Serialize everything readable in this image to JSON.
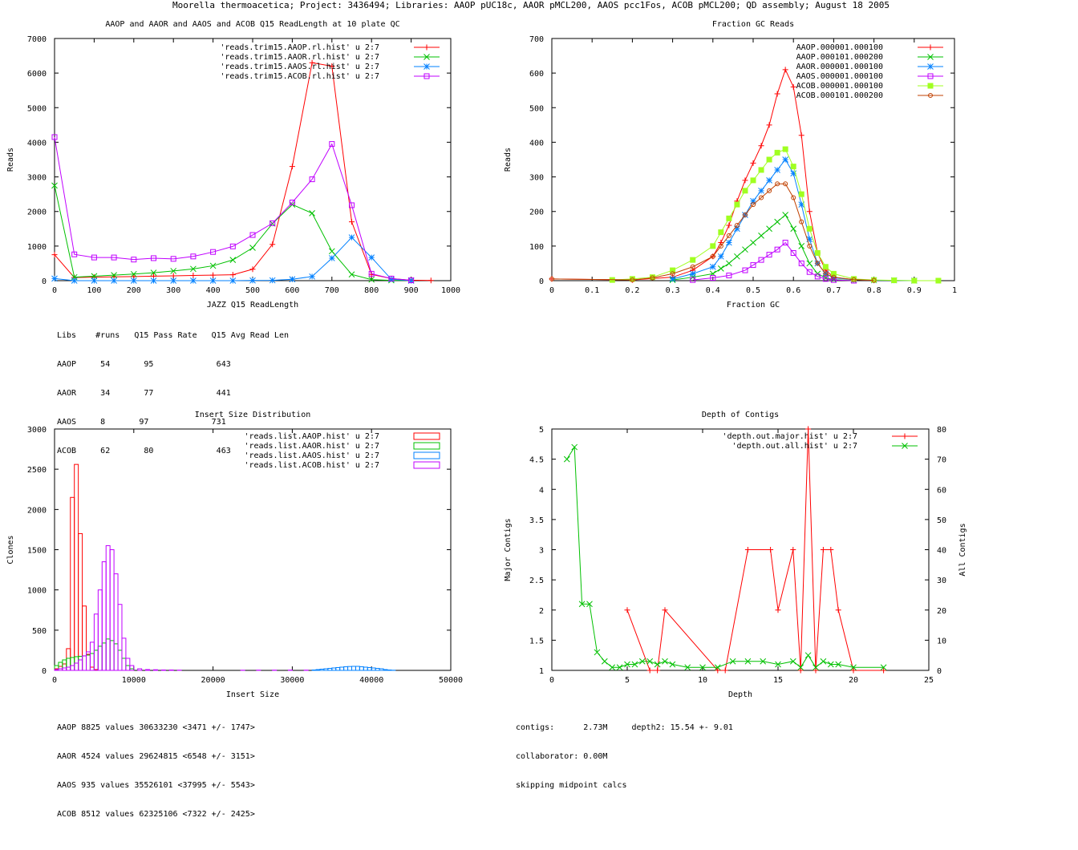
{
  "page": {
    "title": "Moorella thermoacetica; Project: 3436494; Libraries: AAOP pUC18c, AAOR pMCL200, AAOS pcc1Fos, ACOB pMCL200; QD assembly; August 18 2005"
  },
  "colors": {
    "red": "#ff0000",
    "green": "#00c000",
    "blue": "#0080ff",
    "magenta": "#c000ff",
    "lime": "#a0ff20",
    "brown": "#c04000"
  },
  "chart_data": [
    {
      "type": "line",
      "title": "AAOP and AAOR and AAOS and ACOB Q15 ReadLength at 10 plate QC",
      "xlabel": "JAZZ Q15 ReadLength",
      "ylabel": "Reads",
      "xlim": [
        0,
        1000
      ],
      "ylim": [
        0,
        7000
      ],
      "xticks": [
        0,
        100,
        200,
        300,
        400,
        500,
        600,
        700,
        800,
        900,
        1000
      ],
      "yticks": [
        0,
        1000,
        2000,
        3000,
        4000,
        5000,
        6000,
        7000
      ],
      "legend_position": "top-right",
      "series": [
        {
          "name": "'reads.trim15.AAOP.rl.hist' u 2:7",
          "color": "#ff0000",
          "marker": "plus",
          "x": [
            0,
            50,
            100,
            150,
            200,
            250,
            300,
            350,
            400,
            450,
            500,
            550,
            600,
            650,
            700,
            750,
            800,
            850,
            900,
            950
          ],
          "y": [
            750,
            90,
            100,
            110,
            120,
            130,
            140,
            150,
            160,
            170,
            330,
            1050,
            3300,
            6300,
            6200,
            1700,
            180,
            60,
            15,
            5
          ]
        },
        {
          "name": "'reads.trim15.AAOR.rl.hist' u 2:7",
          "color": "#00c000",
          "marker": "cross",
          "x": [
            0,
            50,
            100,
            150,
            200,
            250,
            300,
            350,
            400,
            450,
            500,
            550,
            600,
            650,
            700,
            750,
            800,
            850,
            900
          ],
          "y": [
            2750,
            100,
            130,
            160,
            190,
            230,
            280,
            340,
            430,
            600,
            950,
            1650,
            2200,
            1950,
            850,
            180,
            30,
            10,
            5
          ]
        },
        {
          "name": "'reads.trim15.AAOS.rl.hist' u 2:7",
          "color": "#0080ff",
          "marker": "star",
          "x": [
            0,
            50,
            100,
            150,
            200,
            250,
            300,
            350,
            400,
            450,
            500,
            550,
            600,
            650,
            700,
            750,
            800,
            850,
            900
          ],
          "y": [
            60,
            0,
            0,
            0,
            0,
            0,
            0,
            0,
            0,
            0,
            5,
            10,
            40,
            120,
            650,
            1250,
            670,
            40,
            0
          ]
        },
        {
          "name": "'reads.trim15.ACOB.rl.hist' u 2:7",
          "color": "#c000ff",
          "marker": "box",
          "x": [
            0,
            50,
            100,
            150,
            200,
            250,
            300,
            350,
            400,
            450,
            500,
            550,
            600,
            650,
            700,
            750,
            800,
            850,
            900
          ],
          "y": [
            4150,
            760,
            670,
            670,
            610,
            650,
            630,
            700,
            830,
            990,
            1320,
            1660,
            2260,
            2930,
            3950,
            2180,
            200,
            60,
            10
          ]
        }
      ]
    },
    {
      "type": "line",
      "title": "Fraction GC Reads",
      "xlabel": "Fraction GC",
      "ylabel": "Reads",
      "xlim": [
        0,
        1
      ],
      "ylim": [
        0,
        700
      ],
      "xticks": [
        0,
        0.1,
        0.2,
        0.3,
        0.4,
        0.5,
        0.6,
        0.7,
        0.8,
        0.9,
        1
      ],
      "yticks": [
        0,
        100,
        200,
        300,
        400,
        500,
        600,
        700
      ],
      "legend_position": "top-right",
      "series": [
        {
          "name": "AAOP.000001.000100",
          "color": "#ff0000",
          "marker": "plus",
          "x": [
            0,
            0.2,
            0.3,
            0.35,
            0.4,
            0.42,
            0.44,
            0.46,
            0.48,
            0.5,
            0.52,
            0.54,
            0.56,
            0.58,
            0.6,
            0.62,
            0.64,
            0.66,
            0.68,
            0.7,
            0.75,
            0.8
          ],
          "y": [
            5,
            2,
            10,
            30,
            70,
            110,
            160,
            230,
            290,
            340,
            390,
            450,
            540,
            610,
            560,
            420,
            200,
            80,
            30,
            10,
            3,
            1
          ]
        },
        {
          "name": "AAOP.000101.000200",
          "color": "#00c000",
          "marker": "cross",
          "x": [
            0.3,
            0.35,
            0.4,
            0.42,
            0.44,
            0.46,
            0.48,
            0.5,
            0.52,
            0.54,
            0.56,
            0.58,
            0.6,
            0.62,
            0.64,
            0.66,
            0.68,
            0.7,
            0.75
          ],
          "y": [
            2,
            10,
            20,
            35,
            50,
            70,
            90,
            110,
            130,
            150,
            170,
            190,
            150,
            100,
            50,
            20,
            8,
            3,
            1
          ]
        },
        {
          "name": "AAOR.000001.000100",
          "color": "#0080ff",
          "marker": "star",
          "x": [
            0.3,
            0.35,
            0.4,
            0.42,
            0.44,
            0.46,
            0.48,
            0.5,
            0.52,
            0.54,
            0.56,
            0.58,
            0.6,
            0.62,
            0.64,
            0.66,
            0.68,
            0.7,
            0.75,
            0.8,
            0.85,
            0.9
          ],
          "y": [
            5,
            20,
            40,
            70,
            110,
            150,
            190,
            230,
            260,
            290,
            320,
            350,
            310,
            220,
            120,
            50,
            20,
            8,
            3,
            1,
            1,
            0
          ]
        },
        {
          "name": "AAOS.000001.000100",
          "color": "#c000ff",
          "marker": "box",
          "x": [
            0.35,
            0.4,
            0.44,
            0.48,
            0.5,
            0.52,
            0.54,
            0.56,
            0.58,
            0.6,
            0.62,
            0.64,
            0.66,
            0.68,
            0.7,
            0.75
          ],
          "y": [
            2,
            8,
            15,
            30,
            45,
            60,
            75,
            90,
            110,
            80,
            50,
            25,
            12,
            5,
            2,
            0
          ]
        },
        {
          "name": "ACOB.000001.000100",
          "color": "#a0ff20",
          "marker": "filled-square",
          "x": [
            0.15,
            0.2,
            0.25,
            0.3,
            0.35,
            0.4,
            0.42,
            0.44,
            0.46,
            0.48,
            0.5,
            0.52,
            0.54,
            0.56,
            0.58,
            0.6,
            0.62,
            0.64,
            0.66,
            0.68,
            0.7,
            0.75,
            0.8,
            0.85,
            0.9,
            0.96
          ],
          "y": [
            2,
            5,
            10,
            30,
            60,
            100,
            140,
            180,
            220,
            260,
            290,
            320,
            350,
            370,
            380,
            330,
            250,
            150,
            80,
            40,
            20,
            5,
            2,
            1,
            0,
            0
          ]
        },
        {
          "name": "ACOB.000101.000200",
          "color": "#c04000",
          "marker": "circle",
          "x": [
            0,
            0.2,
            0.25,
            0.3,
            0.35,
            0.4,
            0.42,
            0.44,
            0.46,
            0.48,
            0.5,
            0.52,
            0.54,
            0.56,
            0.58,
            0.6,
            0.62,
            0.64,
            0.66,
            0.68,
            0.7,
            0.75,
            0.8
          ],
          "y": [
            5,
            2,
            8,
            20,
            40,
            70,
            100,
            130,
            160,
            190,
            220,
            240,
            260,
            280,
            280,
            240,
            170,
            100,
            50,
            20,
            10,
            3,
            1
          ]
        }
      ]
    },
    {
      "type": "bar",
      "title": "Insert Size Distribution",
      "xlabel": "Insert Size",
      "ylabel": "Clones",
      "xlim": [
        0,
        50000
      ],
      "ylim": [
        0,
        3000
      ],
      "xticks": [
        0,
        10000,
        20000,
        30000,
        40000,
        50000
      ],
      "yticks": [
        0,
        500,
        1000,
        1500,
        2000,
        2500,
        3000
      ],
      "legend_position": "top-right",
      "series": [
        {
          "name": "'reads.list.AAOP.hist' u 2:7",
          "color": "#ff0000",
          "x": [
            500,
            1000,
            1500,
            2000,
            2500,
            3000,
            3500,
            4000,
            4500,
            5000,
            5500
          ],
          "y": [
            20,
            50,
            80,
            270,
            2150,
            2560,
            1700,
            800,
            200,
            40,
            10
          ]
        },
        {
          "name": "'reads.list.AAOR.hist' u 2:7",
          "color": "#00c000",
          "x": [
            500,
            1000,
            1500,
            2000,
            2500,
            3000,
            3500,
            4000,
            4500,
            5000,
            5500,
            6000,
            6500,
            7000,
            7500,
            8000,
            8500,
            9000,
            9500,
            10000
          ],
          "y": [
            60,
            100,
            130,
            150,
            160,
            170,
            175,
            180,
            190,
            210,
            250,
            300,
            340,
            390,
            370,
            330,
            250,
            150,
            60,
            20
          ]
        },
        {
          "name": "'reads.list.AAOS.hist' u 2:7",
          "color": "#0080ff",
          "x": [
            33000,
            33500,
            34000,
            34500,
            35000,
            35500,
            36000,
            36500,
            37000,
            37500,
            38000,
            38500,
            39000,
            39500,
            40000,
            40500,
            41000,
            41500,
            42000,
            42500,
            43000
          ],
          "y": [
            5,
            10,
            15,
            20,
            25,
            30,
            35,
            40,
            45,
            48,
            50,
            50,
            45,
            40,
            35,
            30,
            25,
            20,
            10,
            5,
            2
          ]
        },
        {
          "name": "'reads.list.ACOB.hist' u 2:7",
          "color": "#c000ff",
          "x": [
            500,
            1000,
            1500,
            2000,
            2500,
            3000,
            3500,
            4000,
            4500,
            5000,
            5500,
            6000,
            6500,
            7000,
            7500,
            8000,
            8500,
            9000,
            9500,
            10000,
            11000,
            12000,
            13000,
            14000,
            15000,
            16000,
            24000,
            26000,
            28000,
            30000,
            32000
          ],
          "y": [
            10,
            20,
            30,
            40,
            60,
            90,
            130,
            180,
            230,
            350,
            700,
            1000,
            1350,
            1550,
            1500,
            1200,
            820,
            400,
            150,
            60,
            20,
            10,
            8,
            5,
            5,
            3,
            2,
            3,
            3,
            3,
            3
          ]
        }
      ]
    },
    {
      "type": "line",
      "title": "Depth of Contigs",
      "xlabel": "Depth",
      "ylabel": "Major Contigs",
      "y2label": "All Contigs",
      "xlim": [
        0,
        25
      ],
      "ylim": [
        1,
        5
      ],
      "y2lim": [
        0,
        80
      ],
      "xticks": [
        0,
        5,
        10,
        15,
        20,
        25
      ],
      "yticks": [
        1,
        1.5,
        2,
        2.5,
        3,
        3.5,
        4,
        4.5,
        5
      ],
      "y2ticks": [
        0,
        10,
        20,
        30,
        40,
        50,
        60,
        70,
        80
      ],
      "legend_position": "top-right",
      "series": [
        {
          "name": "'depth.out.major.hist' u 2:7",
          "color": "#ff0000",
          "marker": "plus",
          "axis": "y1",
          "x": [
            5,
            6.5,
            7,
            7.5,
            11,
            11.5,
            13,
            14.5,
            15,
            16,
            16.5,
            17,
            17.5,
            18,
            18.5,
            19,
            20,
            22
          ],
          "y": [
            2,
            1,
            1,
            2,
            1,
            1,
            3,
            3,
            2,
            3,
            1,
            5,
            1,
            3,
            3,
            2,
            1,
            1
          ]
        },
        {
          "name": "'depth.out.all.hist' u 2:7",
          "color": "#00c000",
          "marker": "cross",
          "axis": "y2",
          "x": [
            1,
            1.5,
            2,
            2.5,
            3,
            3.5,
            4,
            4.5,
            5,
            5.5,
            6,
            6.5,
            7,
            7.5,
            8,
            9,
            10,
            11,
            12,
            13,
            14,
            15,
            16,
            16.5,
            17,
            17.5,
            18,
            18.5,
            19,
            20,
            22
          ],
          "y": [
            70,
            74,
            22,
            22,
            6,
            3,
            1,
            1,
            2,
            2,
            3,
            3,
            2,
            3,
            2,
            1,
            1,
            1,
            3,
            3,
            3,
            2,
            3,
            1,
            5,
            1,
            3,
            2,
            2,
            1,
            1
          ]
        }
      ]
    }
  ],
  "info": {
    "readlength_table": [
      "Libs    #runs   Q15 Pass Rate   Q15 Avg Read Len",
      "AAOP     54       95             643",
      "AAOR     34       77             441",
      "AAOS     8       97             731",
      "ACOB     62       80             463"
    ],
    "insert_stats": [
      "AAOP 8825 values 30633230 <3471 +/- 1747>",
      "AAOR 4524 values 29624815 <6548 +/- 3151>",
      "AAOS 935 values 35526101 <37995 +/- 5543>",
      "ACOB 8512 values 62325106 <7322 +/- 2425>"
    ],
    "contig_stats": [
      "contigs:      2.73M     depth2: 15.54 +- 9.01",
      "collaborator: 0.00M",
      "skipping midpoint calcs"
    ]
  }
}
